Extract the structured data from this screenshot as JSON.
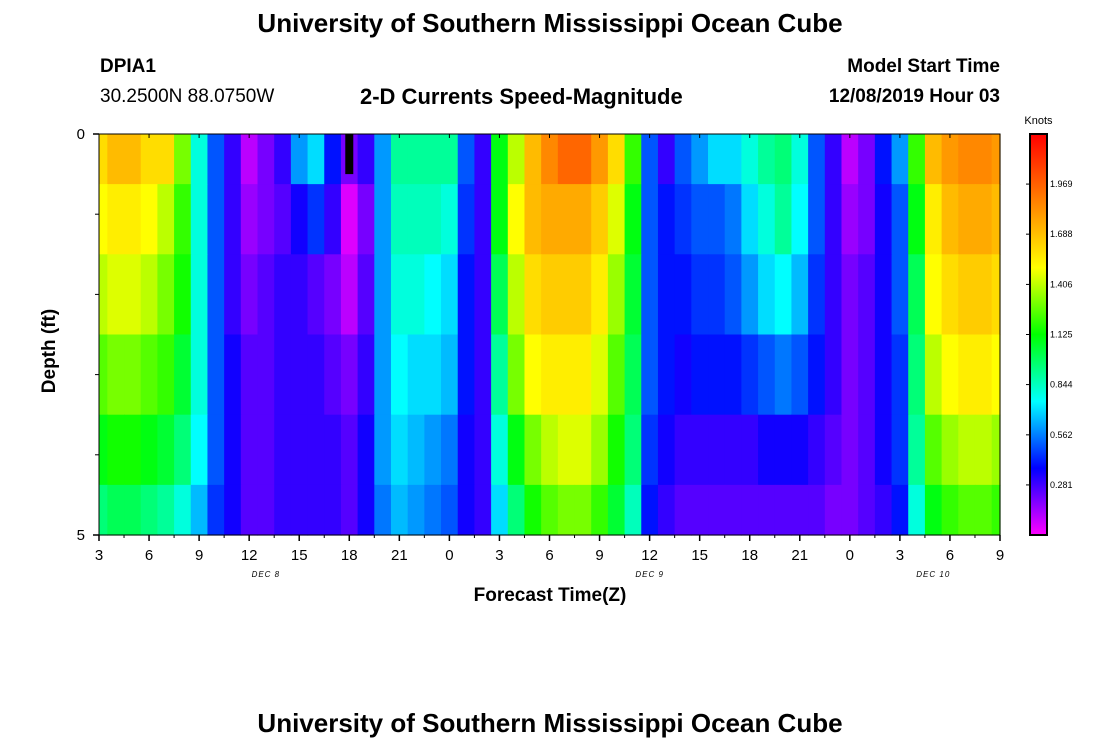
{
  "header": {
    "title": "University of Southern Mississippi Ocean Cube",
    "footer_title": "University of Southern Mississippi Ocean Cube",
    "station_id": "DPIA1",
    "station_location": "30.2500N 88.0750W",
    "plot_title": "2-D Currents Speed-Magnitude",
    "model_start_label": "Model Start Time",
    "model_start_value": "12/08/2019 Hour 03"
  },
  "chart_data": {
    "type": "heatmap",
    "title": "2-D Currents Speed-Magnitude",
    "xlabel": "Forecast Time(Z)",
    "ylabel": "Depth (ft)",
    "x_tick_labels": [
      "3",
      "6",
      "9",
      "12",
      "15",
      "18",
      "21",
      "0",
      "3",
      "6",
      "9",
      "12",
      "15",
      "18",
      "21",
      "0",
      "3",
      "6",
      "9"
    ],
    "x_range_hours": [
      0,
      54
    ],
    "date_labels": [
      {
        "text": "DEC 8",
        "hour": 10
      },
      {
        "text": "DEC 9",
        "hour": 33
      },
      {
        "text": "DEC 10",
        "hour": 50
      }
    ],
    "y_tick_labels": [
      "0",
      "5"
    ],
    "y_range_ft": [
      0,
      5
    ],
    "depth_levels_ft": [
      0.25,
      1.0,
      2.0,
      3.0,
      4.0,
      4.75
    ],
    "colorbar": {
      "label": "Knots",
      "ticks": [
        "1.969",
        "1.688",
        "1.406",
        "1.125",
        "0.844",
        "0.562",
        "0.281"
      ],
      "tick_values": [
        1.969,
        1.688,
        1.406,
        1.125,
        0.844,
        0.562,
        0.281
      ],
      "range": [
        0.0,
        2.25
      ],
      "colors": [
        "#ff00ff",
        "#0000ff",
        "#00ffff",
        "#00ff00",
        "#ffff00",
        "#ff8000",
        "#ff0000"
      ]
    },
    "missing_marker": {
      "hour": 15.0,
      "depth_ft": [
        0.0,
        0.5
      ]
    },
    "time_hours": [
      0,
      1,
      2,
      3,
      4,
      5,
      6,
      7,
      8,
      9,
      10,
      11,
      12,
      13,
      14,
      15,
      16,
      17,
      18,
      19,
      20,
      21,
      22,
      23,
      24,
      25,
      26,
      27,
      28,
      29,
      30,
      31,
      32,
      33,
      34,
      35,
      36,
      37,
      38,
      39,
      40,
      41,
      42,
      43,
      44,
      45,
      46,
      47,
      48,
      49,
      50,
      51,
      52,
      53,
      54
    ],
    "speed_knots": [
      [
        1.6,
        1.7,
        1.7,
        1.6,
        1.6,
        1.3,
        0.8,
        0.5,
        0.3,
        0.1,
        0.2,
        0.3,
        0.6,
        0.7,
        0.4,
        0.2,
        0.3,
        0.6,
        0.9,
        0.9,
        0.9,
        0.9,
        0.5,
        0.3,
        1.1,
        1.4,
        1.7,
        1.85,
        1.95,
        1.95,
        1.8,
        1.6,
        1.2,
        0.5,
        0.3,
        0.5,
        0.6,
        0.7,
        0.7,
        0.8,
        0.9,
        0.95,
        0.8,
        0.5,
        0.3,
        0.1,
        0.2,
        0.4,
        0.6,
        1.2,
        1.7,
        1.8,
        1.85,
        1.85,
        1.8
      ],
      [
        1.5,
        1.55,
        1.55,
        1.5,
        1.4,
        1.2,
        0.8,
        0.5,
        0.3,
        0.15,
        0.2,
        0.25,
        0.35,
        0.45,
        0.3,
        0.05,
        0.2,
        0.6,
        0.85,
        0.85,
        0.85,
        0.8,
        0.45,
        0.3,
        1.1,
        1.5,
        1.7,
        1.75,
        1.75,
        1.75,
        1.65,
        1.45,
        1.1,
        0.5,
        0.4,
        0.45,
        0.5,
        0.5,
        0.55,
        0.7,
        0.8,
        0.9,
        0.75,
        0.5,
        0.3,
        0.15,
        0.2,
        0.35,
        0.5,
        1.1,
        1.55,
        1.7,
        1.75,
        1.75,
        1.7
      ],
      [
        1.4,
        1.45,
        1.45,
        1.4,
        1.3,
        1.15,
        0.8,
        0.5,
        0.3,
        0.2,
        0.25,
        0.3,
        0.3,
        0.25,
        0.2,
        0.1,
        0.25,
        0.6,
        0.8,
        0.8,
        0.75,
        0.7,
        0.4,
        0.3,
        1.0,
        1.4,
        1.6,
        1.65,
        1.65,
        1.65,
        1.55,
        1.35,
        1.05,
        0.5,
        0.4,
        0.4,
        0.45,
        0.45,
        0.5,
        0.6,
        0.7,
        0.75,
        0.65,
        0.45,
        0.3,
        0.2,
        0.25,
        0.35,
        0.5,
        1.0,
        1.5,
        1.6,
        1.65,
        1.65,
        1.6
      ],
      [
        1.25,
        1.3,
        1.3,
        1.25,
        1.2,
        1.05,
        0.8,
        0.5,
        0.35,
        0.25,
        0.25,
        0.3,
        0.3,
        0.3,
        0.25,
        0.2,
        0.3,
        0.6,
        0.75,
        0.7,
        0.7,
        0.65,
        0.4,
        0.3,
        0.9,
        1.3,
        1.5,
        1.55,
        1.55,
        1.55,
        1.45,
        1.25,
        1.0,
        0.5,
        0.4,
        0.35,
        0.4,
        0.4,
        0.4,
        0.45,
        0.5,
        0.55,
        0.5,
        0.4,
        0.3,
        0.2,
        0.25,
        0.35,
        0.45,
        0.95,
        1.4,
        1.5,
        1.55,
        1.55,
        1.5
      ],
      [
        1.1,
        1.15,
        1.15,
        1.1,
        1.05,
        0.95,
        0.75,
        0.5,
        0.35,
        0.25,
        0.25,
        0.3,
        0.3,
        0.3,
        0.3,
        0.25,
        0.35,
        0.6,
        0.7,
        0.65,
        0.6,
        0.55,
        0.35,
        0.3,
        0.8,
        1.1,
        1.3,
        1.4,
        1.45,
        1.45,
        1.35,
        1.15,
        0.95,
        0.45,
        0.35,
        0.3,
        0.3,
        0.3,
        0.3,
        0.3,
        0.35,
        0.35,
        0.35,
        0.3,
        0.25,
        0.2,
        0.25,
        0.35,
        0.45,
        0.9,
        1.25,
        1.35,
        1.4,
        1.4,
        1.35
      ],
      [
        0.95,
        1.0,
        1.0,
        0.95,
        0.9,
        0.8,
        0.65,
        0.45,
        0.35,
        0.25,
        0.25,
        0.3,
        0.3,
        0.3,
        0.3,
        0.25,
        0.35,
        0.55,
        0.65,
        0.6,
        0.55,
        0.5,
        0.35,
        0.3,
        0.7,
        0.95,
        1.15,
        1.25,
        1.3,
        1.3,
        1.2,
        1.05,
        0.85,
        0.4,
        0.3,
        0.25,
        0.25,
        0.25,
        0.25,
        0.25,
        0.25,
        0.25,
        0.25,
        0.25,
        0.2,
        0.2,
        0.25,
        0.3,
        0.4,
        0.8,
        1.1,
        1.2,
        1.25,
        1.25,
        1.2
      ]
    ]
  }
}
